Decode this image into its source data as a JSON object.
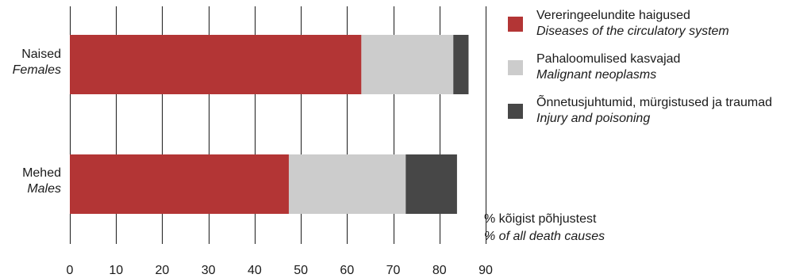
{
  "chart_data": {
    "type": "bar",
    "orientation": "horizontal",
    "stacked": true,
    "categories": [
      {
        "primary": "Naised",
        "secondary": "Females"
      },
      {
        "primary": "Mehed",
        "secondary": "Males"
      }
    ],
    "series": [
      {
        "name": "Vereringeelundite haigused",
        "name_secondary": "Diseases of the circulatory system",
        "color": "#b33535",
        "values": [
          63.1,
          47.4
        ]
      },
      {
        "name": "Pahaloomulised kasvajad",
        "name_secondary": "Malignant neoplasms",
        "color": "#cccccc",
        "values": [
          19.9,
          25.3
        ]
      },
      {
        "name": "Õnnetusjuhtumid, mürgistused ja traumad",
        "name_secondary": "Injury and poisoning",
        "color": "#474747",
        "values": [
          3.3,
          11.1
        ]
      }
    ],
    "xlim": [
      0,
      90
    ],
    "xticks": [
      0,
      10,
      20,
      30,
      40,
      50,
      60,
      70,
      80,
      90
    ],
    "grid": true,
    "legend_position": "right",
    "unit_label": "% kõigist põhjustest",
    "unit_label_secondary": "% of all death causes"
  }
}
